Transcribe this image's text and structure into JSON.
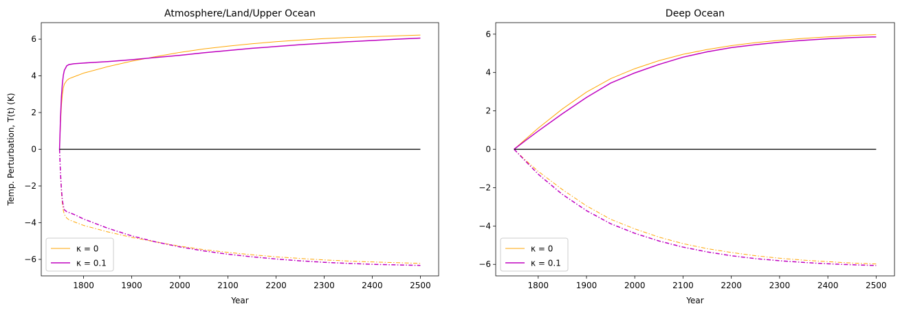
{
  "chart_data": [
    {
      "type": "line",
      "title": "Atmosphere/Land/Upper Ocean",
      "xlabel": "Year",
      "ylabel": "Temp. Perturbation, T(t) (K)",
      "xlim": [
        1712,
        2538
      ],
      "ylim": [
        -6.9,
        6.9
      ],
      "xticks": [
        1800,
        1900,
        2000,
        2100,
        2200,
        2300,
        2400,
        2500
      ],
      "yticks": [
        -6,
        -4,
        -2,
        0,
        2,
        4,
        6
      ],
      "grid": false,
      "legend": {
        "position": "lower-left",
        "entries": [
          "κ = 0",
          "κ = 0.1"
        ]
      },
      "series": [
        {
          "name": "κ = 0",
          "color": "#ffa500",
          "style": "solid",
          "x": [
            1750,
            1752,
            1754,
            1756,
            1758,
            1760,
            1765,
            1770,
            1780,
            1800,
            1850,
            1900,
            1950,
            2000,
            2050,
            2100,
            2150,
            2200,
            2250,
            2300,
            2350,
            2400,
            2450,
            2500
          ],
          "y": [
            0,
            1.4,
            2.4,
            3.0,
            3.35,
            3.55,
            3.75,
            3.85,
            3.95,
            4.15,
            4.5,
            4.8,
            5.05,
            5.28,
            5.47,
            5.62,
            5.75,
            5.86,
            5.95,
            6.03,
            6.09,
            6.14,
            6.18,
            6.22
          ]
        },
        {
          "name": "κ = 0.1",
          "color": "#bf00bf",
          "style": "solid",
          "x": [
            1750,
            1752,
            1754,
            1756,
            1758,
            1760,
            1765,
            1770,
            1780,
            1800,
            1850,
            1900,
            1950,
            2000,
            2050,
            2100,
            2150,
            2200,
            2250,
            2300,
            2350,
            2400,
            2450,
            2500
          ],
          "y": [
            0,
            1.7,
            2.9,
            3.6,
            4.05,
            4.3,
            4.55,
            4.62,
            4.66,
            4.7,
            4.78,
            4.88,
            5.0,
            5.12,
            5.26,
            5.38,
            5.5,
            5.6,
            5.7,
            5.78,
            5.86,
            5.93,
            6.0,
            6.06
          ]
        },
        {
          "name": "κ = 0",
          "color": "#ffa500",
          "style": "dashdot",
          "x": [
            1750,
            1752,
            1754,
            1756,
            1758,
            1760,
            1765,
            1770,
            1780,
            1800,
            1850,
            1900,
            1950,
            2000,
            2050,
            2100,
            2150,
            2200,
            2250,
            2300,
            2350,
            2400,
            2450,
            2500
          ],
          "y": [
            0,
            -1.4,
            -2.4,
            -3.0,
            -3.35,
            -3.55,
            -3.75,
            -3.85,
            -3.95,
            -4.15,
            -4.5,
            -4.8,
            -5.05,
            -5.28,
            -5.47,
            -5.62,
            -5.75,
            -5.86,
            -5.95,
            -6.03,
            -6.09,
            -6.14,
            -6.18,
            -6.22
          ]
        },
        {
          "name": "κ = 0.1",
          "color": "#bf00bf",
          "style": "dashdot",
          "x": [
            1750,
            1752,
            1754,
            1756,
            1758,
            1760,
            1765,
            1770,
            1780,
            1800,
            1850,
            1900,
            1950,
            2000,
            2050,
            2100,
            2150,
            2200,
            2250,
            2300,
            2350,
            2400,
            2450,
            2500
          ],
          "y": [
            0,
            -1.3,
            -2.2,
            -2.8,
            -3.1,
            -3.3,
            -3.4,
            -3.45,
            -3.55,
            -3.8,
            -4.3,
            -4.72,
            -5.05,
            -5.32,
            -5.54,
            -5.72,
            -5.86,
            -5.98,
            -6.08,
            -6.16,
            -6.22,
            -6.27,
            -6.3,
            -6.33
          ]
        },
        {
          "name": "",
          "color": "#000000",
          "style": "solid",
          "x": [
            1750,
            2500
          ],
          "y": [
            0,
            0
          ]
        }
      ]
    },
    {
      "type": "line",
      "title": "Deep Ocean",
      "xlabel": "Year",
      "ylabel": "",
      "xlim": [
        1712,
        2538
      ],
      "ylim": [
        -6.6,
        6.6
      ],
      "xticks": [
        1800,
        1900,
        2000,
        2100,
        2200,
        2300,
        2400,
        2500
      ],
      "yticks": [
        -6,
        -4,
        -2,
        0,
        2,
        4,
        6
      ],
      "grid": false,
      "legend": {
        "position": "lower-left",
        "entries": [
          "κ = 0",
          "κ = 0.1"
        ]
      },
      "series": [
        {
          "name": "κ = 0",
          "color": "#ffa500",
          "style": "solid",
          "x": [
            1750,
            1775,
            1800,
            1850,
            1900,
            1950,
            2000,
            2050,
            2100,
            2150,
            2200,
            2250,
            2300,
            2350,
            2400,
            2450,
            2500
          ],
          "y": [
            0,
            0.55,
            1.1,
            2.1,
            2.98,
            3.68,
            4.2,
            4.62,
            4.95,
            5.2,
            5.4,
            5.56,
            5.68,
            5.78,
            5.86,
            5.93,
            5.98
          ]
        },
        {
          "name": "κ = 0.1",
          "color": "#bf00bf",
          "style": "solid",
          "x": [
            1750,
            1775,
            1800,
            1850,
            1900,
            1950,
            2000,
            2050,
            2100,
            2150,
            2200,
            2250,
            2300,
            2350,
            2400,
            2450,
            2500
          ],
          "y": [
            0,
            0.48,
            0.95,
            1.85,
            2.7,
            3.45,
            3.98,
            4.42,
            4.8,
            5.08,
            5.3,
            5.45,
            5.58,
            5.68,
            5.76,
            5.82,
            5.86
          ]
        },
        {
          "name": "κ = 0",
          "color": "#ffa500",
          "style": "dashdot",
          "x": [
            1750,
            1775,
            1800,
            1850,
            1900,
            1950,
            2000,
            2050,
            2100,
            2150,
            2200,
            2250,
            2300,
            2350,
            2400,
            2450,
            2500
          ],
          "y": [
            0,
            -0.6,
            -1.15,
            -2.1,
            -2.95,
            -3.65,
            -4.15,
            -4.58,
            -4.92,
            -5.18,
            -5.38,
            -5.55,
            -5.68,
            -5.78,
            -5.86,
            -5.93,
            -5.98
          ]
        },
        {
          "name": "κ = 0.1",
          "color": "#bf00bf",
          "style": "dashdot",
          "x": [
            1750,
            1775,
            1800,
            1850,
            1900,
            1950,
            2000,
            2050,
            2100,
            2150,
            2200,
            2250,
            2300,
            2350,
            2400,
            2450,
            2500
          ],
          "y": [
            0,
            -0.65,
            -1.3,
            -2.35,
            -3.2,
            -3.88,
            -4.38,
            -4.78,
            -5.1,
            -5.35,
            -5.55,
            -5.7,
            -5.81,
            -5.9,
            -5.97,
            -6.02,
            -6.06
          ]
        },
        {
          "name": "",
          "color": "#000000",
          "style": "solid",
          "x": [
            1750,
            2500
          ],
          "y": [
            0,
            0
          ]
        }
      ]
    }
  ]
}
